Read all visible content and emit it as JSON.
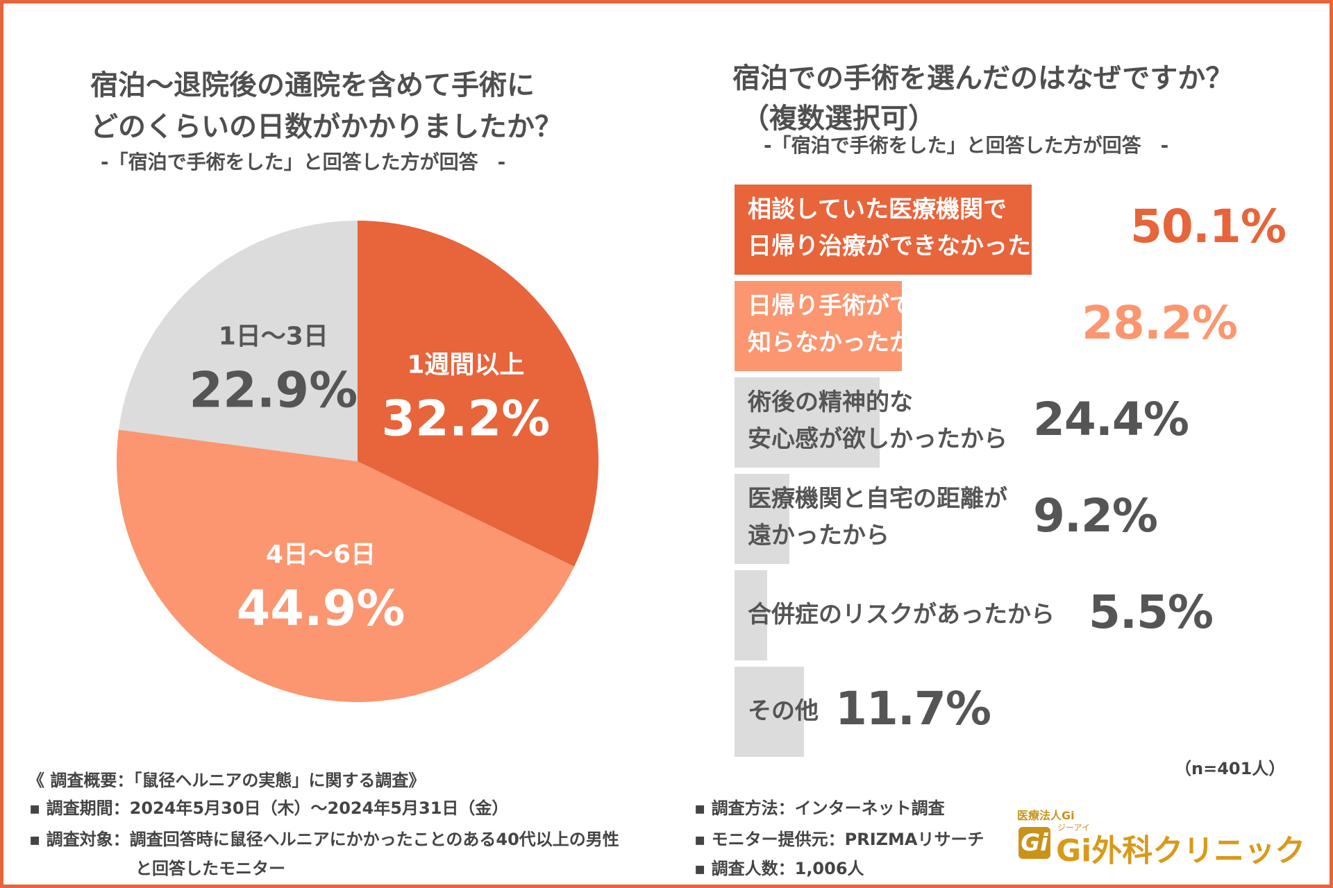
{
  "colors": {
    "accent": "#e8643a",
    "light": "#fb9670",
    "gray": "#dcdcdc",
    "text": "#555555"
  },
  "left_chart": {
    "title_line1": "宿泊〜退院後の通院を含めて手術に",
    "title_line2": "どのくらいの日数がかかりましたか？",
    "subtitle": "-「宿泊で手術をした」と回答した方が回答　-"
  },
  "right_chart": {
    "title_line1": "宿泊での手術を選んだのはなぜですか？",
    "title_line2": "（複数選択可）",
    "subtitle": "-「宿泊で手術をした」と回答した方が回答　-",
    "n_note": "（n=401人）"
  },
  "chart_data": [
    {
      "type": "pie",
      "title": "宿泊〜退院後の通院を含めて手術にどのくらいの日数がかかりましたか？",
      "slices": [
        {
          "label": "1週間以上",
          "value": 32.2,
          "pct": "32.2%",
          "color": "#e8643a",
          "text_color": "#ffffff"
        },
        {
          "label": "4日〜6日",
          "value": 44.9,
          "pct": "44.9%",
          "color": "#fb9670",
          "text_color": "#ffffff"
        },
        {
          "label": "1日〜3日",
          "value": 22.9,
          "pct": "22.9%",
          "color": "#dcdcdc",
          "text_color": "#555555"
        }
      ]
    },
    {
      "type": "bar",
      "orientation": "horizontal",
      "title": "宿泊での手術を選んだのはなぜですか？（複数選択可）",
      "n": "n=401人",
      "bars": [
        {
          "line1": "相談していた医療機関で",
          "line2": "日帰り治療ができなかったから",
          "value": 50.1,
          "pct": "50.1%",
          "color": "#e8643a",
          "text_color": "#ffffff",
          "pct_color": "#e8643a"
        },
        {
          "line1": "日帰り手術ができることを",
          "line2": "知らなかったから",
          "value": 28.2,
          "pct": "28.2%",
          "color": "#fb9670",
          "text_color": "#ffffff",
          "pct_color": "#fb9670"
        },
        {
          "line1": "術後の精神的な",
          "line2": "安心感が欲しかったから",
          "value": 24.4,
          "pct": "24.4%",
          "color": "#dcdcdc",
          "text_color": "#555555",
          "pct_color": "#555555"
        },
        {
          "line1": "医療機関と自宅の距離が",
          "line2": "遠かったから",
          "value": 9.2,
          "pct": "9.2%",
          "color": "#dcdcdc",
          "text_color": "#555555",
          "pct_color": "#555555"
        },
        {
          "line1": "合併症のリスクがあったから",
          "line2": "",
          "value": 5.5,
          "pct": "5.5%",
          "color": "#dcdcdc",
          "text_color": "#555555",
          "pct_color": "#555555"
        },
        {
          "line1": "その他",
          "line2": "",
          "value": 11.7,
          "pct": "11.7%",
          "color": "#dcdcdc",
          "text_color": "#555555",
          "pct_color": "#555555"
        }
      ]
    }
  ],
  "footer": {
    "overview": "《 調査概要：「鼠径ヘルニアの実態」に関する調査》",
    "period": "▪ 調査期間：2024年5月30日（木）〜2024年5月31日（金）",
    "target": "▪ 調査対象：調査回答時に鼠径ヘルニアにかかったことのある40代以上の男性",
    "target_cont": "と回答したモニター",
    "method": "▪ 調査方法：インターネット調査",
    "provider": "▪ モニター提供元：PRIZMAリサーチ",
    "count": "▪ 調査人数：1,006人"
  },
  "logo": {
    "corp": "医療法人Gi",
    "ruby": "ジーアイ",
    "mark": "Gi",
    "name": "Gi外科クリニック"
  }
}
